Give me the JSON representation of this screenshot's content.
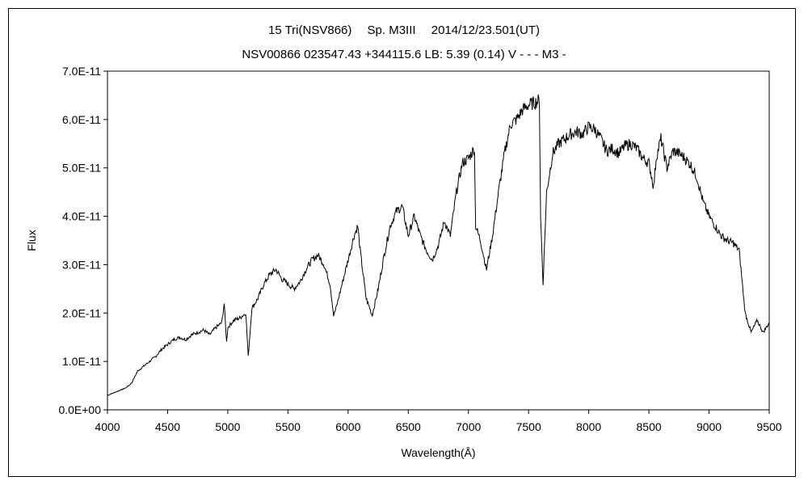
{
  "chart_data": {
    "type": "line",
    "title": "15 Tri(NSV866)　 Sp. M3III　 2014/12/23.501(UT)",
    "subtitle": "NSV00866 023547.43 +344115.6 LB: 5.39 (0.14) V - - - M3 -",
    "xlabel": "Wavelength(Å)",
    "ylabel": "Flux",
    "xlim": [
      4000,
      9500
    ],
    "ylim": [
      0,
      7e-11
    ],
    "xticks": [
      4000,
      4500,
      5000,
      5500,
      6000,
      6500,
      7000,
      7500,
      8000,
      8500,
      9000,
      9500
    ],
    "xtick_labels": [
      "4000",
      "4500",
      "5000",
      "5500",
      "6000",
      "6500",
      "7000",
      "7500",
      "8000",
      "8500",
      "9000",
      "9500"
    ],
    "yticks": [
      0,
      1e-11,
      2e-11,
      3e-11,
      4e-11,
      5e-11,
      6e-11,
      7e-11
    ],
    "ytick_labels": [
      "0.0E+00",
      "1.0E-11",
      "2.0E-11",
      "3.0E-11",
      "4.0E-11",
      "5.0E-11",
      "6.0E-11",
      "7.0E-11"
    ],
    "grid": false,
    "line_color": "#000000",
    "series": [
      {
        "x": [
          4000,
          4050,
          4100,
          4150,
          4200,
          4250,
          4300,
          4350,
          4400,
          4450,
          4500,
          4550,
          4600,
          4650,
          4700,
          4750,
          4800,
          4850,
          4900,
          4950,
          4970,
          4990,
          5000,
          5050,
          5100,
          5150,
          5170,
          5200,
          5250,
          5300,
          5350,
          5400,
          5450,
          5500,
          5550,
          5600,
          5650,
          5700,
          5750,
          5800,
          5850,
          5880,
          5900,
          5950,
          6000,
          6050,
          6080,
          6100,
          6150,
          6180,
          6200,
          6250,
          6300,
          6350,
          6400,
          6450,
          6500,
          6550,
          6600,
          6650,
          6700,
          6750,
          6800,
          6850,
          6900,
          6950,
          7000,
          7050,
          7060,
          7100,
          7150,
          7200,
          7250,
          7300,
          7350,
          7400,
          7450,
          7500,
          7550,
          7590,
          7600,
          7620,
          7650,
          7700,
          7750,
          7800,
          7850,
          7900,
          7950,
          8000,
          8050,
          8100,
          8150,
          8200,
          8250,
          8300,
          8350,
          8400,
          8450,
          8500,
          8540,
          8560,
          8600,
          8650,
          8700,
          8750,
          8800,
          8850,
          8900,
          8950,
          9000,
          9050,
          9100,
          9150,
          9200,
          9250,
          9300,
          9350,
          9400,
          9450,
          9500
        ],
        "y": [
          3e-12,
          3.5e-12,
          4e-12,
          4.5e-12,
          5.5e-12,
          8e-12,
          9e-12,
          1e-11,
          1.1e-11,
          1.25e-11,
          1.35e-11,
          1.45e-11,
          1.5e-11,
          1.45e-11,
          1.55e-11,
          1.6e-11,
          1.65e-11,
          1.55e-11,
          1.7e-11,
          1.8e-11,
          2.2e-11,
          1.4e-11,
          1.7e-11,
          1.85e-11,
          1.9e-11,
          2e-11,
          1.1e-11,
          2.1e-11,
          2.3e-11,
          2.6e-11,
          2.8e-11,
          2.9e-11,
          2.7e-11,
          2.6e-11,
          2.5e-11,
          2.65e-11,
          2.9e-11,
          3.1e-11,
          3.2e-11,
          3e-11,
          2.6e-11,
          1.95e-11,
          2.1e-11,
          2.6e-11,
          3.1e-11,
          3.6e-11,
          3.8e-11,
          3.3e-11,
          2.3e-11,
          2.1e-11,
          1.95e-11,
          2.5e-11,
          3.2e-11,
          3.8e-11,
          4.1e-11,
          4.2e-11,
          3.6e-11,
          4e-11,
          3.6e-11,
          3.3e-11,
          3.1e-11,
          3.4e-11,
          3.9e-11,
          3.6e-11,
          4.5e-11,
          5.1e-11,
          5.2e-11,
          5.4e-11,
          3.8e-11,
          3.5e-11,
          2.9e-11,
          3.6e-11,
          4.5e-11,
          5.3e-11,
          5.9e-11,
          6e-11,
          6.2e-11,
          6.3e-11,
          6.35e-11,
          6.4e-11,
          4e-11,
          2.6e-11,
          4.5e-11,
          5.3e-11,
          5.5e-11,
          5.6e-11,
          5.7e-11,
          5.75e-11,
          5.7e-11,
          5.85e-11,
          5.8e-11,
          5.6e-11,
          5.35e-11,
          5.4e-11,
          5.3e-11,
          5.45e-11,
          5.5e-11,
          5.4e-11,
          5.2e-11,
          5.1e-11,
          4.6e-11,
          5.2e-11,
          5.6e-11,
          5e-11,
          5.35e-11,
          5.3e-11,
          5.2e-11,
          5.05e-11,
          4.8e-11,
          4.3e-11,
          4e-11,
          3.8e-11,
          3.6e-11,
          3.5e-11,
          3.45e-11,
          3.3e-11,
          2e-11,
          1.6e-11,
          1.85e-11,
          1.6e-11,
          1.8e-11
        ]
      }
    ]
  }
}
